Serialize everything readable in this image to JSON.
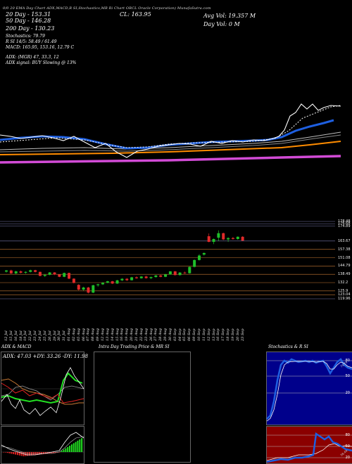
{
  "header": {
    "overlap_line": "0/0 20 EMA Day Chart ADX,MACD,R SI,Stochastics,MR  Ri Chart ORCL  Oracle Corporation) MunafaSutra.com",
    "ema20": "20 Day - 153.31",
    "ema50": "50 Day - 146.28",
    "ema200": "200 Day - 130.23",
    "close": "CL: 163.95",
    "avg_vol": "Avg Vol: 19.357 M",
    "day_vol": "Day Vol: 0  M",
    "stochastics": "Stochastics: 79.79",
    "rsi": "R                    SI 14/5: 58.49 / 61.49",
    "macd": "MACD: 165.95, 153.16, 12.79 C",
    "adx": "ADX:                              (MGR) 47, 33.3, 12",
    "adx_signal": "ADX  signal:                                      BUY Slowing @ 13%"
  },
  "price_labels": [
    "178.48",
    "176.68",
    "174.89",
    "163.67",
    "157.38",
    "151.08",
    "144.79",
    "138.49",
    "132.2",
    "125.9",
    "123.04",
    "119.96"
  ],
  "panel_titles": {
    "adx_macd": "ADX  & MACD",
    "intraday": "Intra  Day Trading Price  & MR                         SI",
    "stoch_rsi": "Stochastics & R                SI"
  },
  "adx_panel": {
    "readout": "ADX: 47.03  +DY: 33.26  -DY: 11.98"
  },
  "stoch_panel": {
    "levels": [
      "80",
      "50",
      "20"
    ],
    "tag": "79.79"
  },
  "rsi_panel": {
    "levels": [
      "80",
      "50",
      "20"
    ],
    "tag": "58.49"
  },
  "colors": {
    "ema_fast": "#1e5fe0",
    "ema_mid": "#ff8c00",
    "ema_slow": "#d24bd6",
    "up": "#1fbf2a",
    "down": "#e12a2a",
    "price": "#ffffff"
  },
  "chart_data": {
    "type": "candlestick",
    "dates": [
      "12 Jul",
      "15 Jul",
      "16 Jul",
      "18 Jul",
      "19 Jul",
      "22 Jul",
      "23 Jul",
      "24 Jul",
      "25 Jul",
      "26 Jul",
      "29 Jul",
      "30 Jul",
      "31 Jul",
      "01 Aug",
      "02 Aug",
      "05 Aug",
      "06 Aug",
      "07 Aug",
      "08 Aug",
      "09 Aug",
      "12 Aug",
      "13 Aug",
      "14 Aug",
      "15 Aug",
      "16 Aug",
      "19 Aug",
      "20 Aug",
      "21 Aug",
      "22 Aug",
      "23 Aug",
      "26 Aug",
      "27 Aug",
      "28 Aug",
      "29 Aug",
      "30 Aug",
      "03 Sep",
      "04 Sep",
      "05 Sep",
      "06 Sep",
      "09 Sep",
      "10 Sep",
      "11 Sep",
      "12 Sep",
      "13 Sep",
      "16 Sep",
      "17 Sep",
      "18 Sep",
      "19 Sep",
      "20 Sep",
      "23 Sep"
    ],
    "ohlc": [
      [
        140.5,
        141.8,
        139.8,
        141.4
      ],
      [
        141.4,
        142.0,
        138.8,
        139.2
      ],
      [
        139.2,
        141.2,
        138.6,
        140.7
      ],
      [
        140.7,
        141.4,
        139.2,
        139.7
      ],
      [
        139.7,
        140.8,
        138.9,
        140.3
      ],
      [
        140.3,
        142.0,
        139.9,
        141.6
      ],
      [
        141.6,
        141.9,
        139.9,
        140.3
      ],
      [
        140.3,
        140.6,
        137.0,
        137.3
      ],
      [
        137.3,
        138.7,
        136.5,
        138.1
      ],
      [
        138.1,
        140.2,
        137.8,
        139.9
      ],
      [
        139.9,
        140.1,
        137.9,
        138.3
      ],
      [
        138.3,
        138.6,
        136.3,
        136.6
      ],
      [
        136.6,
        139.8,
        136.3,
        139.5
      ],
      [
        139.5,
        139.8,
        134.8,
        135.2
      ],
      [
        135.2,
        135.5,
        131.6,
        132.0
      ],
      [
        130.5,
        131.0,
        126.3,
        126.9
      ],
      [
        126.9,
        129.1,
        126.1,
        128.5
      ],
      [
        128.5,
        129.0,
        124.0,
        124.6
      ],
      [
        124.6,
        130.6,
        124.3,
        130.2
      ],
      [
        130.2,
        131.4,
        129.1,
        130.9
      ],
      [
        130.9,
        132.6,
        130.4,
        132.1
      ],
      [
        132.1,
        133.6,
        131.7,
        133.2
      ],
      [
        133.2,
        133.5,
        131.1,
        131.5
      ],
      [
        131.5,
        134.3,
        131.2,
        133.9
      ],
      [
        133.9,
        135.6,
        133.4,
        135.1
      ],
      [
        135.1,
        135.7,
        133.4,
        134.0
      ],
      [
        134.0,
        136.6,
        133.7,
        136.2
      ],
      [
        136.2,
        136.9,
        135.1,
        135.5
      ],
      [
        135.5,
        137.1,
        135.2,
        136.8
      ],
      [
        136.8,
        137.4,
        135.2,
        135.6
      ],
      [
        135.6,
        136.8,
        134.9,
        136.4
      ],
      [
        136.4,
        138.0,
        136.0,
        137.6
      ],
      [
        137.6,
        138.2,
        136.2,
        136.6
      ],
      [
        136.6,
        138.8,
        136.3,
        138.4
      ],
      [
        138.4,
        141.0,
        138.1,
        140.7
      ],
      [
        140.7,
        141.0,
        137.6,
        137.9
      ],
      [
        137.9,
        140.1,
        137.6,
        139.8
      ],
      [
        139.8,
        140.6,
        138.9,
        139.3
      ],
      [
        139.3,
        144.4,
        139.0,
        144.1
      ],
      [
        144.1,
        149.7,
        143.8,
        149.3
      ],
      [
        149.3,
        153.7,
        148.9,
        152.7
      ],
      [
        153.4,
        155.0,
        152.6,
        154.6
      ],
      [
        167.3,
        169.4,
        162.8,
        163.0
      ],
      [
        163.0,
        165.6,
        161.3,
        165.2
      ],
      [
        166.2,
        171.7,
        163.8,
        169.6
      ],
      [
        169.6,
        170.0,
        164.4,
        164.9
      ],
      [
        164.9,
        166.5,
        163.0,
        165.9
      ],
      [
        165.9,
        166.8,
        164.7,
        165.2
      ],
      [
        165.2,
        167.2,
        164.6,
        166.9
      ],
      [
        166.9,
        167.3,
        163.7,
        163.95
      ]
    ],
    "price_ylim": [
      119.96,
      178.48
    ]
  }
}
